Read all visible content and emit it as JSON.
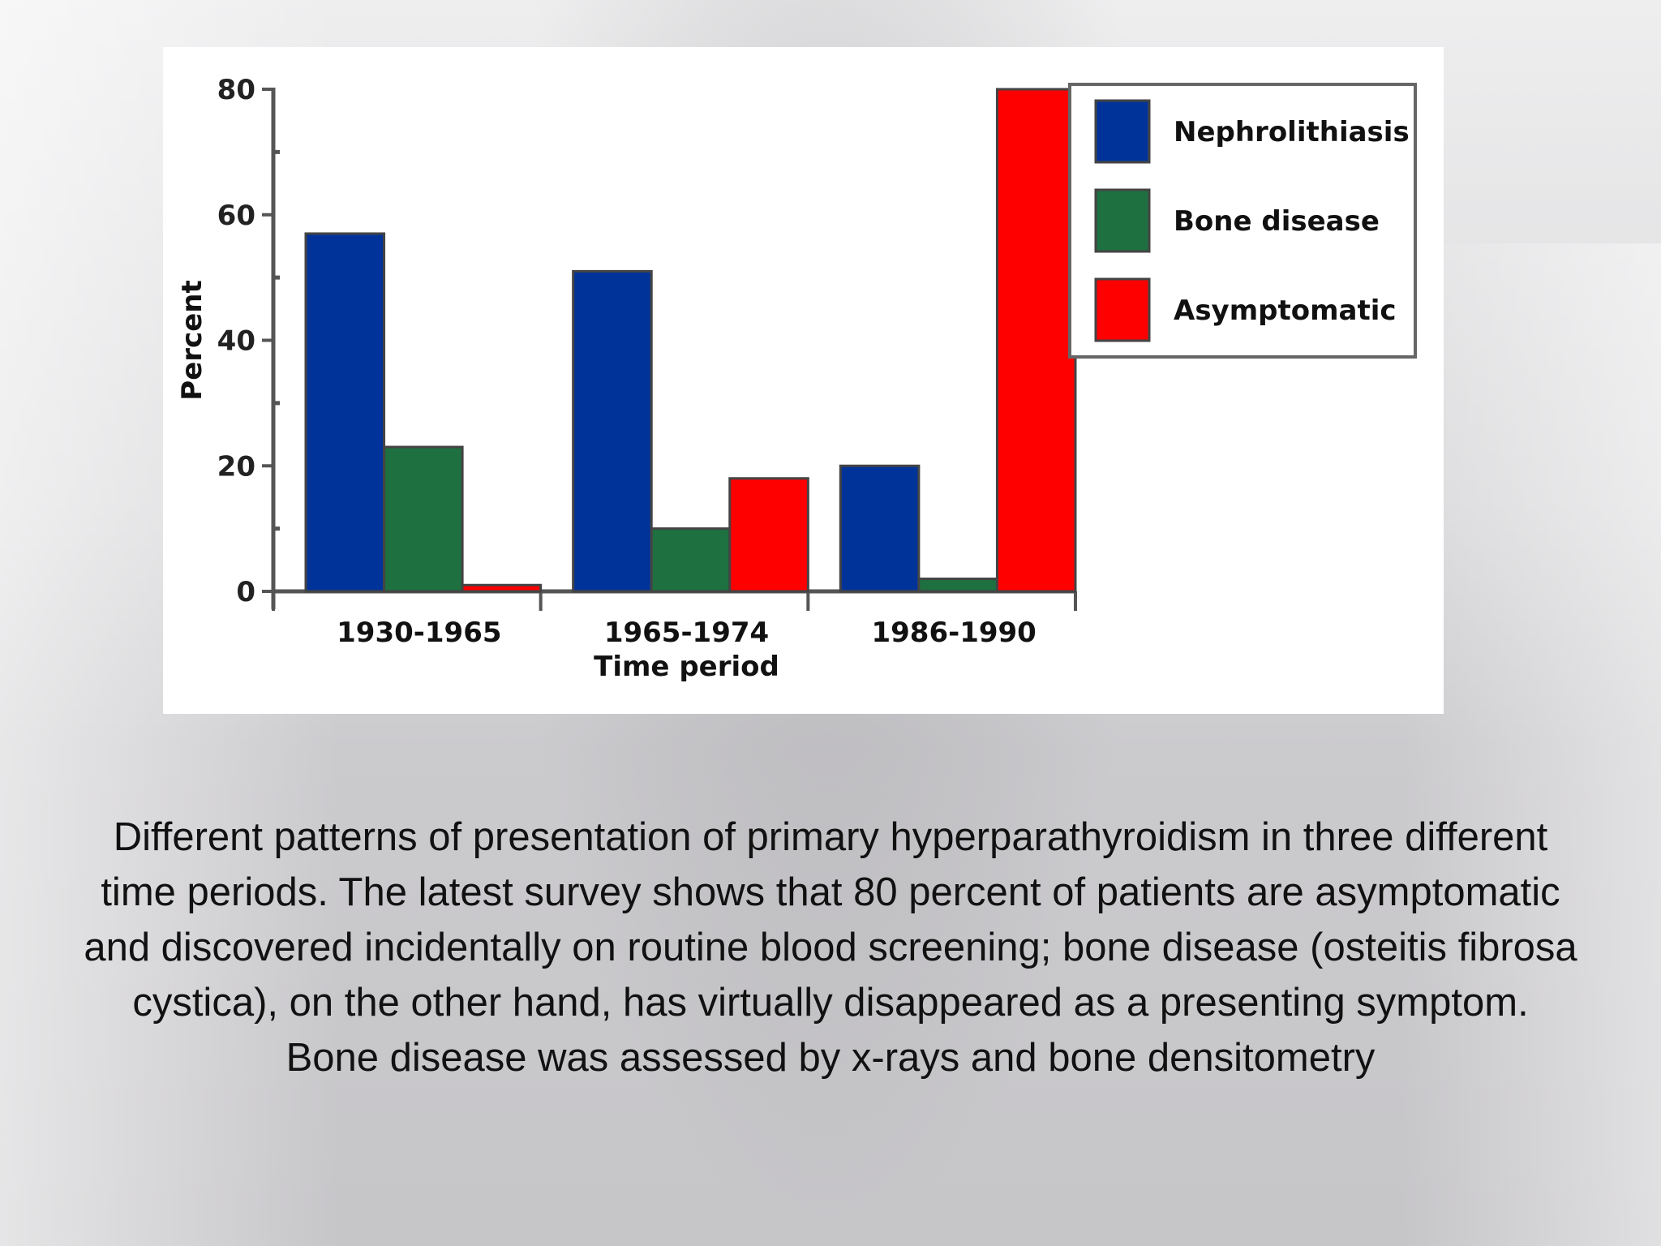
{
  "chart_data": {
    "type": "bar",
    "categories": [
      "1930-1965",
      "1965-1974",
      "1986-1990"
    ],
    "series": [
      {
        "name": "Nephrolithiasis",
        "values": [
          57,
          51,
          20
        ],
        "color": "#003399"
      },
      {
        "name": "Bone disease",
        "values": [
          23,
          10,
          2
        ],
        "color": "#1e7040"
      },
      {
        "name": "Asymptomatic",
        "values": [
          1,
          18,
          80
        ],
        "color": "#ff0000"
      }
    ],
    "title": "",
    "xlabel": "Time period",
    "ylabel": "Percent",
    "ylim": [
      0,
      80
    ],
    "yticks": [
      0,
      20,
      40,
      60,
      80
    ],
    "ytick_labels": [
      "0",
      "20",
      "40",
      "60",
      "80"
    ],
    "grid": false,
    "legend_position": "top-right"
  },
  "caption": "Different patterns of presentation of primary hyperparathyroidism in three different time periods. The latest survey shows that 80 percent of patients are asymptomatic and discovered incidentally on routine blood screening; bone disease (osteitis fibrosa cystica), on the other hand, has virtually disappeared as a presenting symptom. Bone disease was assessed by x-rays and bone densitometry"
}
